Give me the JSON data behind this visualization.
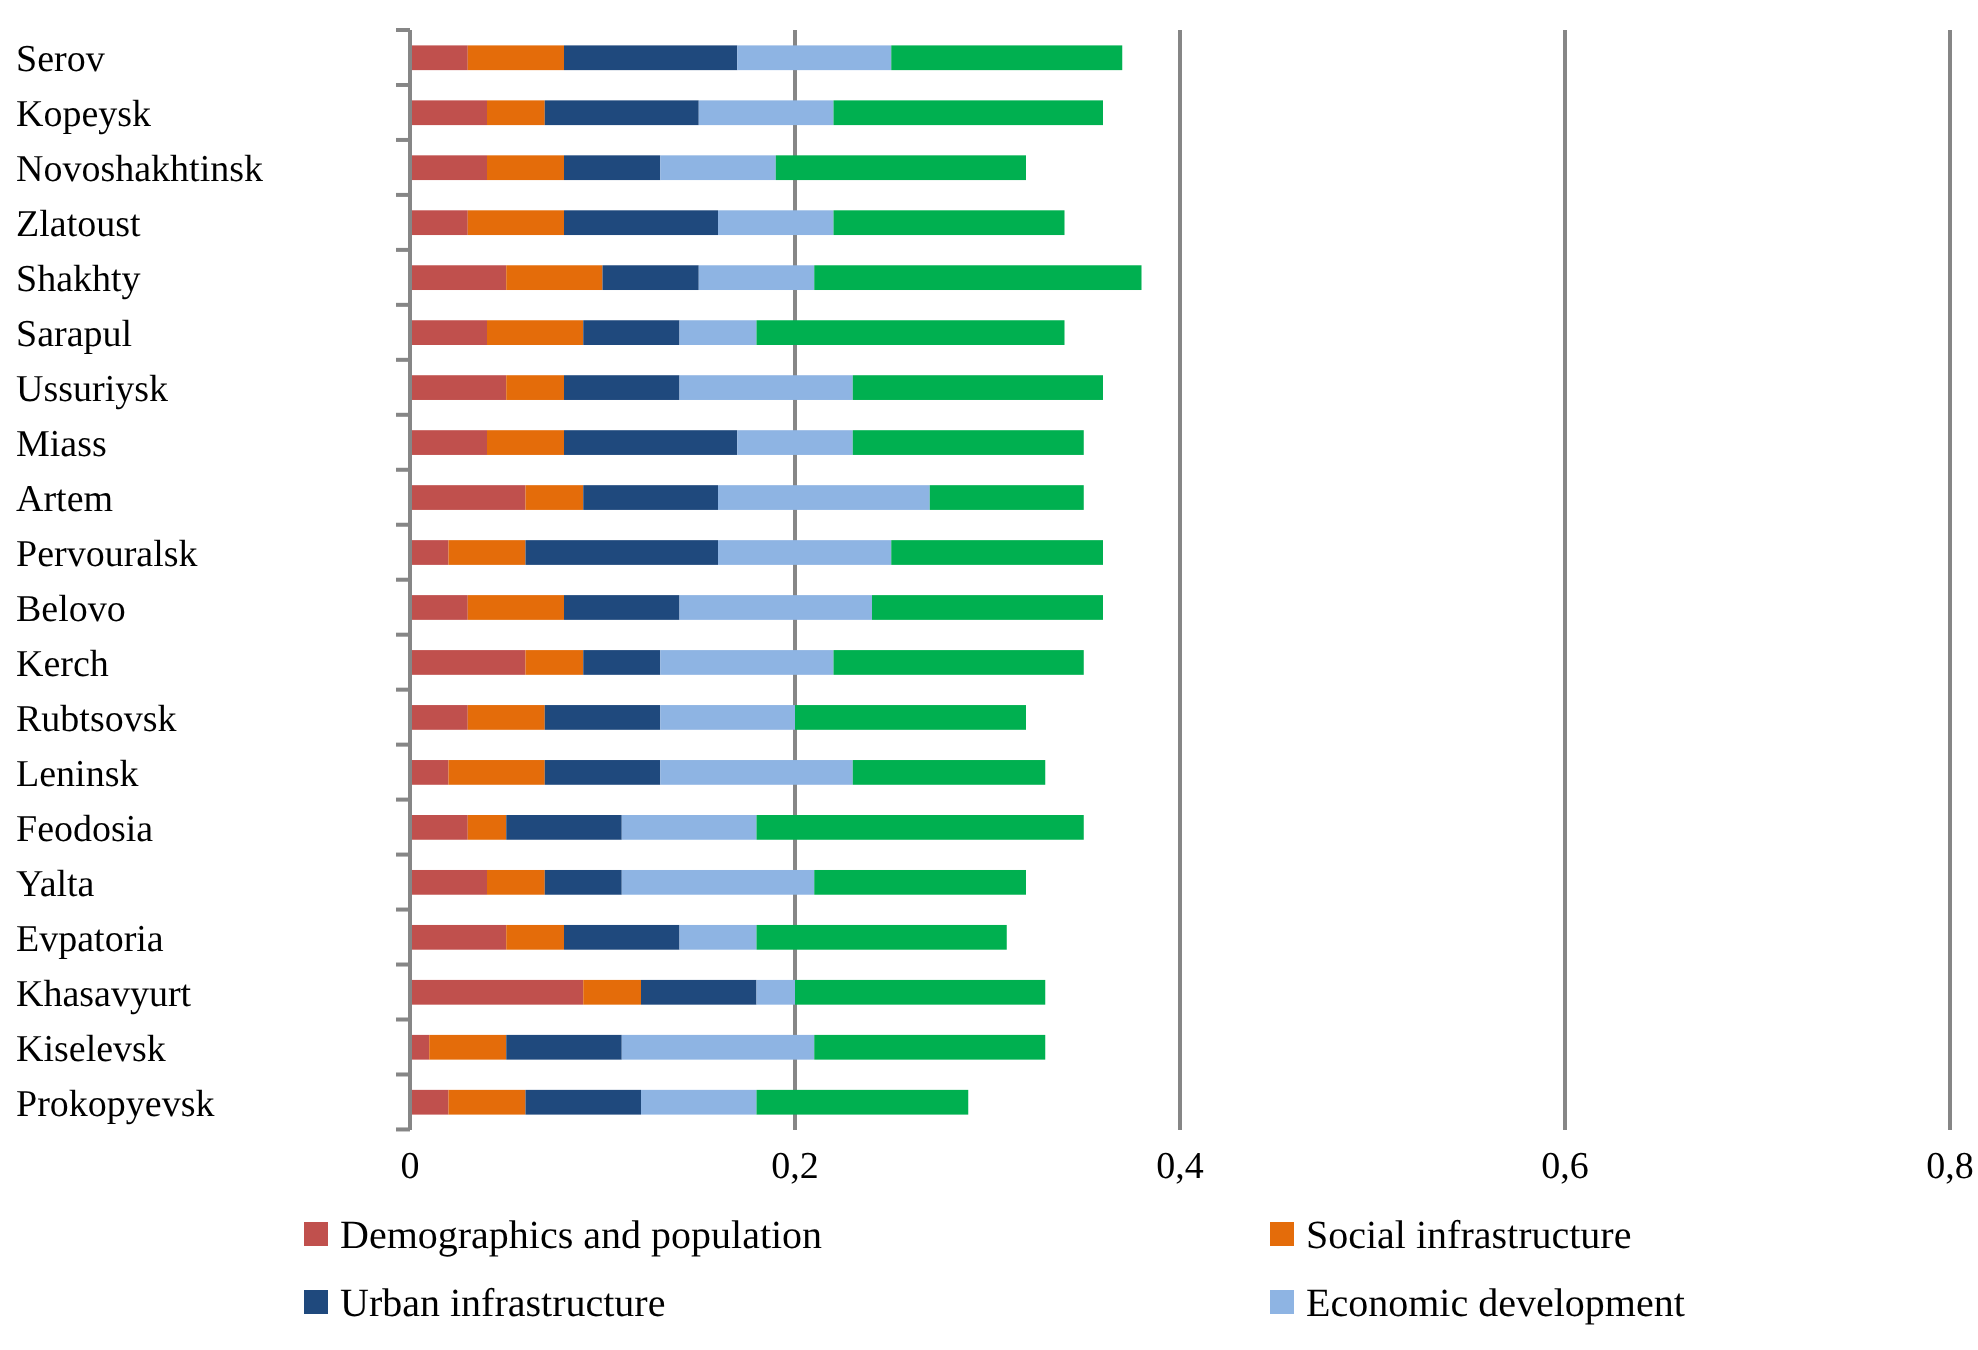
{
  "chart_data": {
    "type": "bar",
    "orientation": "horizontal",
    "stacked": true,
    "categories": [
      "Serov",
      "Kopeysk",
      "Novoshakhtinsk",
      "Zlatoust",
      "Shakhty",
      "Sarapul",
      "Ussuriysk",
      "Miass",
      "Artem",
      "Pervouralsk",
      "Belovo",
      "Kerch",
      "Rubtsovsk",
      "Leninsk",
      "Feodosia",
      "Yalta",
      "Evpatoria",
      "Khasavyurt",
      "Kiselevsk",
      "Prokopyevsk"
    ],
    "series": [
      {
        "name": "Demographics and population",
        "color": "#c0504d",
        "values": [
          0.03,
          0.04,
          0.04,
          0.03,
          0.05,
          0.04,
          0.05,
          0.04,
          0.06,
          0.02,
          0.03,
          0.06,
          0.03,
          0.02,
          0.03,
          0.04,
          0.05,
          0.09,
          0.01,
          0.02
        ]
      },
      {
        "name": "Social infrastructure",
        "color": "#e46c0a",
        "values": [
          0.05,
          0.03,
          0.04,
          0.05,
          0.05,
          0.05,
          0.03,
          0.04,
          0.03,
          0.04,
          0.05,
          0.03,
          0.04,
          0.05,
          0.02,
          0.03,
          0.03,
          0.03,
          0.04,
          0.04
        ]
      },
      {
        "name": "Urban infrastructure",
        "color": "#1f497d",
        "values": [
          0.09,
          0.08,
          0.05,
          0.08,
          0.05,
          0.05,
          0.06,
          0.09,
          0.07,
          0.1,
          0.06,
          0.04,
          0.06,
          0.06,
          0.06,
          0.04,
          0.06,
          0.06,
          0.06,
          0.06
        ]
      },
      {
        "name": "Economic development",
        "color": "#8eb4e3",
        "values": [
          0.08,
          0.07,
          0.06,
          0.06,
          0.06,
          0.04,
          0.09,
          0.06,
          0.11,
          0.09,
          0.1,
          0.09,
          0.07,
          0.1,
          0.07,
          0.1,
          0.04,
          0.02,
          0.1,
          0.06
        ]
      },
      {
        "color": "#00b050",
        "values": [
          0.12,
          0.14,
          0.13,
          0.12,
          0.17,
          0.16,
          0.13,
          0.12,
          0.08,
          0.11,
          0.12,
          0.13,
          0.12,
          0.1,
          0.17,
          0.11,
          0.13,
          0.13,
          0.12,
          0.11
        ]
      }
    ],
    "xlim": [
      0,
      0.8
    ],
    "xticks": [
      0,
      {
        "value": 0.2,
        "label": "0,2"
      },
      {
        "value": 0.4,
        "label": "0,4"
      },
      {
        "value": 0.6,
        "label": "0,6"
      },
      {
        "value": 0.8,
        "label": "0,8"
      }
    ],
    "grid": "x",
    "legend": "bottom"
  }
}
